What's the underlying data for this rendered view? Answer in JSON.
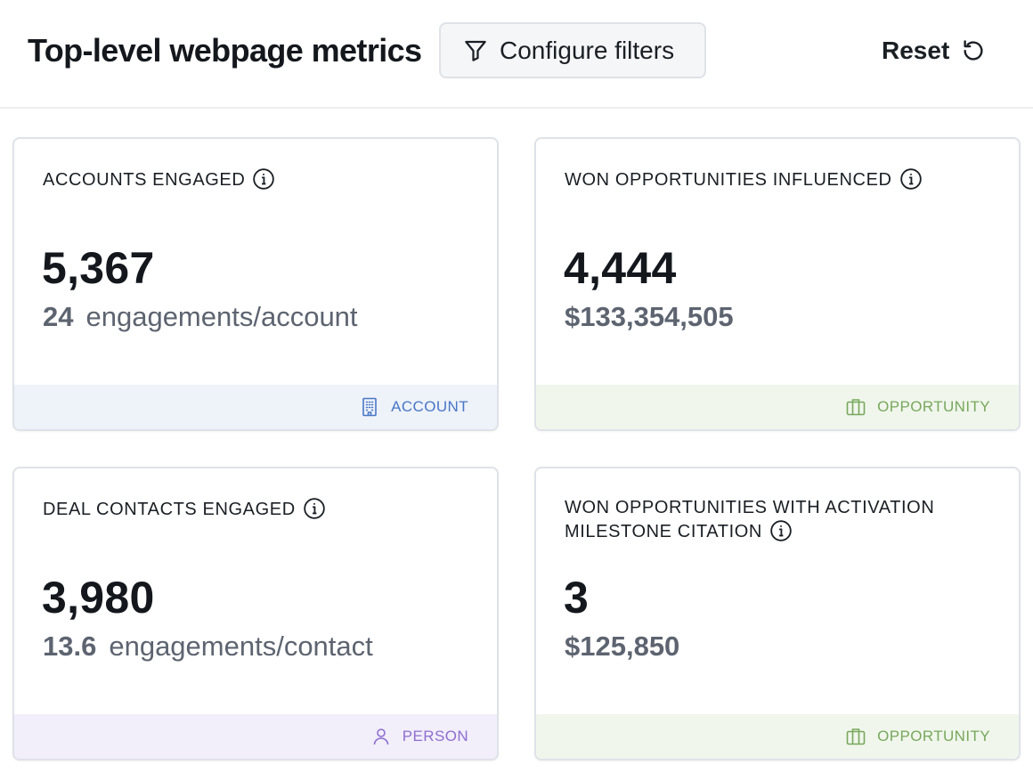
{
  "header": {
    "title": "Top-level webpage metrics",
    "filter_button_label": "Configure filters",
    "reset_label": "Reset"
  },
  "cards": [
    {
      "title": "ACCOUNTS ENGAGED",
      "value": "5,367",
      "sub_number": "24",
      "sub_text": "engagements/account",
      "footer_label": "ACCOUNT",
      "footer_icon": "building-icon"
    },
    {
      "title": "WON OPPORTUNITIES INFLUENCED",
      "value": "4,444",
      "sub_amount": "$133,354,505",
      "footer_label": "OPPORTUNITY",
      "footer_icon": "briefcase-icon"
    },
    {
      "title": "DEAL CONTACTS ENGAGED",
      "value": "3,980",
      "sub_number": "13.6",
      "sub_text": "engagements/contact",
      "footer_label": "PERSON",
      "footer_icon": "person-icon"
    },
    {
      "title": "WON OPPORTUNITIES WITH ACTIVATION MILESTONE CITATION",
      "value": "3",
      "sub_amount": "$125,850",
      "footer_label": "OPPORTUNITY",
      "footer_icon": "briefcase-icon"
    }
  ],
  "colors": {
    "account_tag": "#4877c6",
    "account_bg": "#eef2f9",
    "opportunity_tag": "#78a85c",
    "opportunity_bg": "#f0f6ec",
    "person_tag": "#8d6fd0",
    "person_bg": "#f2eefa"
  }
}
